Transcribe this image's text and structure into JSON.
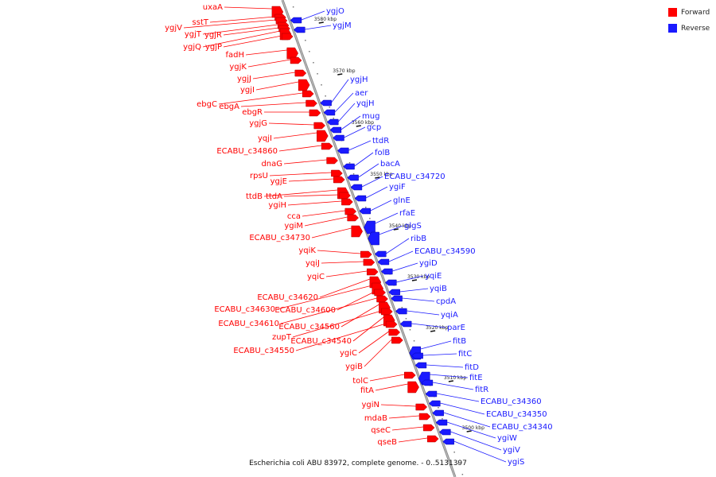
{
  "legend": {
    "forward_label": "Forward",
    "reverse_label": "Reverse",
    "forward_color": "#ff0000",
    "reverse_color": "#1a1aff"
  },
  "caption": "Escherichia coli ABU 83972, complete genome. - 0..5131397",
  "colors": {
    "forward": "#ff0000",
    "reverse": "#1a1aff",
    "axis": "#888888"
  },
  "ticks": [
    "3580 kbp",
    "3570 kbp",
    "3560 kbp",
    "3550 kbp",
    "3540 kbp",
    "3530 kbp",
    "3520 kbp",
    "3510 kbp",
    "3500 kbp"
  ],
  "forward_genes": [
    "uxaA",
    "sstT",
    "ygjV",
    "ygjT",
    "ygjR",
    "ygjQ",
    "ygjP",
    "fadH",
    "ygjK",
    "ygjJ",
    "ygjI",
    "ebgC",
    "ebgA",
    "ebgR",
    "ygjG",
    "yqjI",
    "ECABU_c34860",
    "dnaG",
    "rpsU",
    "ygjE",
    "ttdB",
    "ttdA",
    "ygiH",
    "cca",
    "ygiM",
    "ECABU_c34730",
    "yqiK",
    "yqiJ",
    "yqiC",
    "ECABU_c34620",
    "ECABU_c34630",
    "ECABU_c34600",
    "ECABU_c34610",
    "ECABU_c34560",
    "zupT",
    "ECABU_c34540",
    "ECABU_c34550",
    "ygiC",
    "ygiB",
    "tolC",
    "fitA",
    "ygiN",
    "mdaB",
    "qseC",
    "qseB"
  ],
  "reverse_genes": [
    "ygjO",
    "ygjM",
    "ygjH",
    "aer",
    "yqjH",
    "mug",
    "gcp",
    "ttdR",
    "folB",
    "bacA",
    "ECABU_c34720",
    "ygiF",
    "glnE",
    "rfaE",
    "glgS",
    "ribB",
    "ECABU_c34590",
    "ygiD",
    "yqiE",
    "yqiB",
    "cpdA",
    "yqiA",
    "parE",
    "fitB",
    "fitC",
    "fitD",
    "fitE",
    "fitR",
    "ECABU_c34360",
    "ECABU_c34350",
    "ECABU_c34340",
    "ygiW",
    "ygiV",
    "ygiS"
  ]
}
